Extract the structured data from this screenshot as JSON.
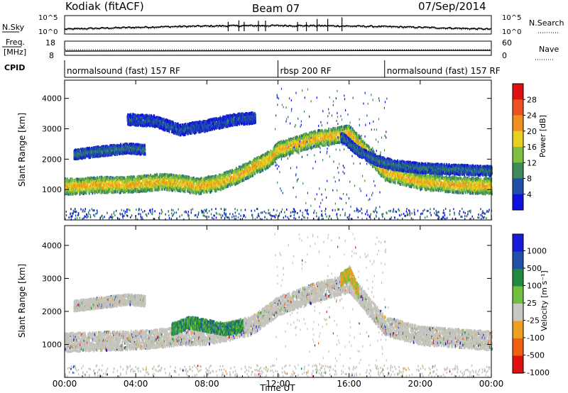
{
  "header": {
    "station": "Kodiak (fitACF)",
    "beam": "Beam 07",
    "date": "07/Sep/2014"
  },
  "noise_panel": {
    "left_label": "N.Sky",
    "right_label": "N.Search",
    "left_ticks": [
      "10^5",
      "10^0"
    ],
    "right_ticks": [
      "10^5",
      "10^0"
    ]
  },
  "freq_panel": {
    "left_label_line1": "Freq.",
    "left_label_line2": "[MHz]",
    "right_label": "Nave",
    "left_ticks": [
      "18",
      "8"
    ],
    "right_ticks": [
      "60",
      "0"
    ]
  },
  "cpid_panel": {
    "label": "CPID",
    "segments": [
      {
        "name": "normalsound (fast) 157 RF",
        "start_h": 0,
        "end_h": 12
      },
      {
        "name": "rbsp 200 RF",
        "start_h": 12,
        "end_h": 18
      },
      {
        "name": "normalsound (fast) 157 RF",
        "start_h": 18,
        "end_h": 24
      }
    ]
  },
  "x_axis": {
    "label": "Time UT",
    "range_h": [
      0,
      24
    ],
    "tick_labels": [
      "00:00",
      "04:00",
      "08:00",
      "12:00",
      "16:00",
      "20:00",
      "00:00"
    ]
  },
  "chart_data": [
    {
      "type": "heatmap",
      "title": "",
      "xlabel": "",
      "ylabel": "Slant Range [km]",
      "ylim": [
        0,
        4600
      ],
      "y_ticks": [
        "1000",
        "2000",
        "3000",
        "4000"
      ],
      "colorbar": {
        "label": "Power [dB]",
        "tick_labels": [
          "4",
          "8",
          "12",
          "16",
          "20",
          "24",
          "28"
        ],
        "range": [
          0,
          30
        ]
      },
      "bands": [
        {
          "x_h": [
            0,
            0.8,
            2,
            3.5,
            4.5,
            5.5,
            6.5,
            7.5,
            8.5,
            9.5,
            10.5,
            11.5,
            12,
            14,
            16,
            18,
            20,
            22,
            24
          ],
          "y_km": [
            1150,
            1150,
            1200,
            1200,
            1250,
            1300,
            1250,
            1150,
            1250,
            1450,
            1750,
            2050,
            2350,
            2700,
            2900,
            1600,
            1300,
            1200,
            1150
          ],
          "power_db": 20
        },
        {
          "x_h": [
            0.5,
            2,
            3.5,
            4.5
          ],
          "y_km": [
            2200,
            2300,
            2400,
            2350
          ],
          "power_db": 8
        },
        {
          "x_h": [
            3.5,
            5,
            6.5,
            8,
            9.5,
            10.7
          ],
          "y_km": [
            3350,
            3300,
            3000,
            3150,
            3350,
            3400
          ],
          "power_db": 6
        },
        {
          "x_h": [
            15.5,
            16.5,
            17.5,
            18.5,
            20,
            22,
            24
          ],
          "y_km": [
            2800,
            2300,
            2000,
            1850,
            1750,
            1700,
            1650
          ],
          "power_db": 8
        }
      ]
    },
    {
      "type": "heatmap",
      "title": "",
      "xlabel": "Time UT",
      "ylabel": "Slant Range [km]",
      "ylim": [
        0,
        4600
      ],
      "y_ticks": [
        "1000",
        "2000",
        "3000",
        "4000"
      ],
      "colorbar": {
        "label": "Velocity [m s^-1]",
        "tick_labels": [
          "1000",
          "500",
          "100",
          "25",
          "-25",
          "-100",
          "-500",
          "-1000"
        ]
      },
      "bands": [
        {
          "x_h": [
            0,
            3,
            5,
            6.5,
            8,
            10.5,
            12,
            14,
            16,
            18,
            20,
            24
          ],
          "y_km": [
            1100,
            1150,
            1200,
            1300,
            1300,
            1600,
            2200,
            2600,
            2900,
            1600,
            1300,
            1150
          ],
          "velocity": 0
        },
        {
          "x_h": [
            6,
            7,
            8,
            9,
            10
          ],
          "y_km": [
            1500,
            1700,
            1600,
            1500,
            1600
          ],
          "velocity": 200
        },
        {
          "x_h": [
            0.5,
            2,
            3.5,
            4.5
          ],
          "y_km": [
            2200,
            2300,
            2400,
            2350
          ],
          "velocity": 0
        },
        {
          "x_h": [
            15.5,
            16,
            16.5
          ],
          "y_km": [
            3000,
            3200,
            2600
          ],
          "velocity": -150
        }
      ]
    }
  ],
  "colors": {
    "power": [
      "#1010e0",
      "#1f4fa8",
      "#3d8a5a",
      "#7fbf3f",
      "#e8d020",
      "#f09020",
      "#ee5020",
      "#e01010"
    ],
    "velocity": [
      "#1a1adc",
      "#2050a8",
      "#208a40",
      "#70c040",
      "#c8c8c0",
      "#f0a020",
      "#f06010",
      "#e01010"
    ],
    "gray": "#c4c4bc"
  }
}
